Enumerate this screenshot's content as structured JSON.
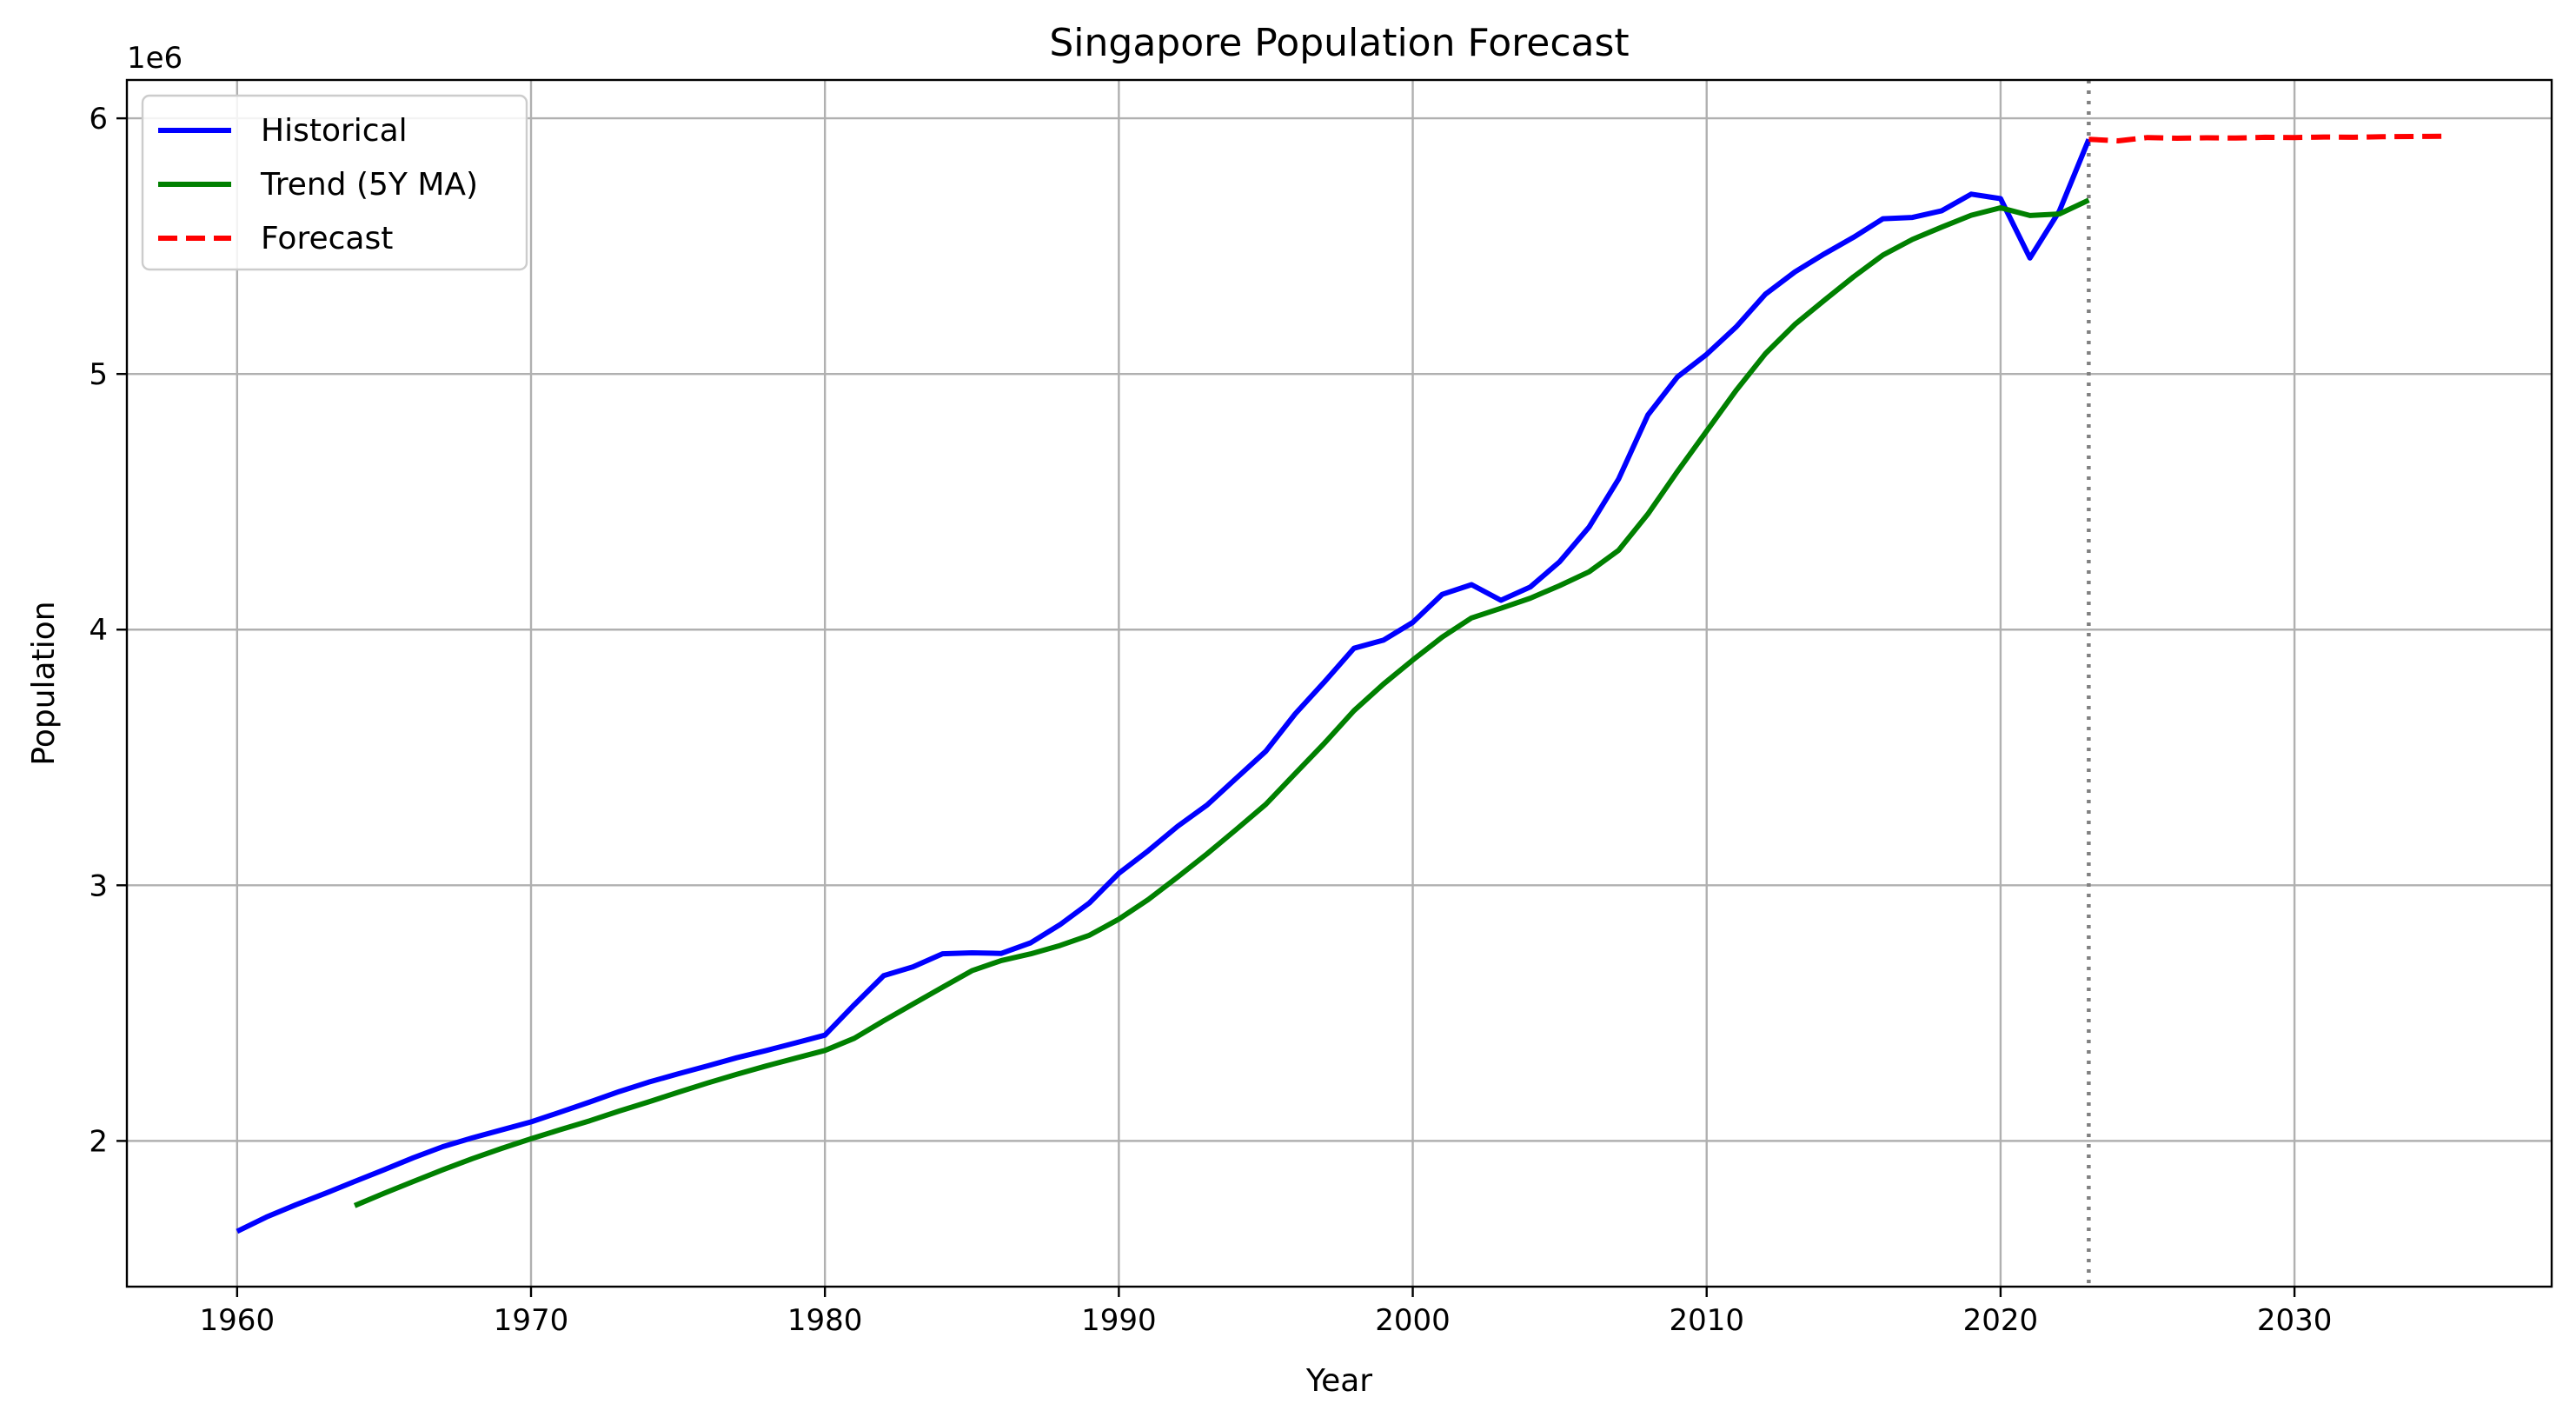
{
  "chart_data": {
    "type": "line",
    "title": "Singapore Population Forecast",
    "xlabel": "Year",
    "ylabel": "Population",
    "y_offset_text": "1e6",
    "xlim": [
      1956.25,
      2038.75
    ],
    "ylim": [
      1430000,
      6150000
    ],
    "x_ticks": [
      1960,
      1970,
      1980,
      1990,
      2000,
      2010,
      2020,
      2030
    ],
    "y_ticks": [
      2000000,
      3000000,
      4000000,
      5000000,
      6000000
    ],
    "y_tick_labels": [
      "2",
      "3",
      "4",
      "5",
      "6"
    ],
    "grid": true,
    "legend_position": "upper-left",
    "forecast_start_marker": 2023,
    "marker_color": "#808080",
    "series": [
      {
        "name": "Historical",
        "color": "#0000ff",
        "style": "solid",
        "x": [
          1960,
          1961,
          1962,
          1963,
          1964,
          1965,
          1966,
          1967,
          1968,
          1969,
          1970,
          1971,
          1972,
          1973,
          1974,
          1975,
          1976,
          1977,
          1978,
          1979,
          1980,
          1981,
          1982,
          1983,
          1984,
          1985,
          1986,
          1987,
          1988,
          1989,
          1990,
          1991,
          1992,
          1993,
          1994,
          1995,
          1996,
          1997,
          1998,
          1999,
          2000,
          2001,
          2002,
          2003,
          2004,
          2005,
          2006,
          2007,
          2008,
          2009,
          2010,
          2011,
          2012,
          2013,
          2014,
          2015,
          2016,
          2017,
          2018,
          2019,
          2020,
          2021,
          2022,
          2023
        ],
        "y": [
          1646400,
          1702400,
          1750200,
          1795000,
          1841600,
          1886900,
          1934400,
          1977600,
          2012000,
          2043200,
          2074500,
          2112900,
          2152400,
          2193000,
          2229800,
          2262600,
          2293300,
          2325300,
          2353600,
          2383500,
          2413900,
          2532800,
          2646500,
          2681100,
          2732200,
          2735900,
          2733400,
          2774800,
          2846100,
          2930900,
          3047100,
          3135100,
          3230700,
          3313500,
          3419000,
          3524500,
          3670700,
          3796000,
          3927200,
          3958700,
          4027900,
          4138000,
          4175900,
          4114800,
          4166700,
          4265800,
          4401400,
          4588600,
          4839400,
          4987600,
          5076700,
          5183700,
          5312400,
          5399200,
          5469700,
          5535000,
          5607300,
          5612300,
          5638700,
          5703600,
          5685800,
          5453600,
          5637000,
          5917600
        ]
      },
      {
        "name": "Trend (5Y MA)",
        "color": "#008000",
        "style": "solid",
        "x": [
          1964,
          1965,
          1966,
          1967,
          1968,
          1969,
          1970,
          1971,
          1972,
          1973,
          1974,
          1975,
          1976,
          1977,
          1978,
          1979,
          1980,
          1981,
          1982,
          1983,
          1984,
          1985,
          1986,
          1987,
          1988,
          1989,
          1990,
          1991,
          1992,
          1993,
          1994,
          1995,
          1996,
          1997,
          1998,
          1999,
          2000,
          2001,
          2002,
          2003,
          2004,
          2005,
          2006,
          2007,
          2008,
          2009,
          2010,
          2011,
          2012,
          2013,
          2014,
          2015,
          2016,
          2017,
          2018,
          2019,
          2020,
          2021,
          2022,
          2023
        ],
        "y": [
          1747100,
          1795200,
          1841600,
          1887100,
          1930400,
          1970800,
          2008400,
          2044000,
          2079000,
          2117000,
          2152500,
          2190100,
          2226300,
          2260600,
          2292900,
          2323700,
          2354000,
          2401700,
          2470000,
          2535500,
          2601300,
          2665800,
          2705600,
          2731900,
          2764300,
          2804500,
          2867500,
          2944300,
          3031900,
          3122700,
          3218600,
          3316600,
          3437000,
          3556300,
          3682800,
          3786700,
          3880700,
          3970700,
          4045600,
          4083400,
          4123000,
          4172300,
          4226400,
          4310100,
          4452100,
          4617600,
          4776500,
          4935300,
          5080000,
          5193700,
          5287800,
          5380000,
          5465100,
          5526500,
          5574700,
          5621000,
          5650000,
          5620000,
          5626000,
          5680000
        ]
      },
      {
        "name": "Forecast",
        "color": "#ff0000",
        "style": "dashed",
        "x": [
          2023,
          2024,
          2025,
          2026,
          2027,
          2028,
          2029,
          2030,
          2031,
          2032,
          2033,
          2034,
          2035
        ],
        "y": [
          5918000,
          5912000,
          5925000,
          5922000,
          5924000,
          5923000,
          5926000,
          5925000,
          5927000,
          5926000,
          5928000,
          5929000,
          5930000
        ]
      }
    ]
  }
}
